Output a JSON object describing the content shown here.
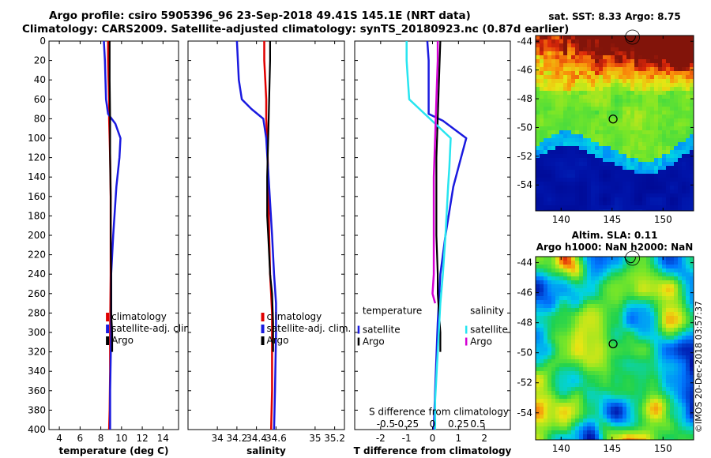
{
  "header": {
    "title_line1": "Argo profile: csiro 5905396_96 23-Sep-2018 49.41S 145.1E (NRT data)",
    "title_line2": "Climatology: CARS2009. Satellite-adjusted climatology: synTS_20180923.nc (0.87d earlier)"
  },
  "stamp": "©IMOS 20-Dec-2018 03:57:37",
  "colors": {
    "red": "#e00000",
    "blue": "#1a1adf",
    "black": "#000000",
    "cyan": "#27e5f0",
    "magenta": "#d400d4"
  },
  "chart_data": [
    {
      "type": "line",
      "id": "temperature",
      "xlabel": "temperature (deg C)",
      "xlim": [
        3,
        15.5
      ],
      "ylim": [
        0,
        400
      ],
      "xticks": [
        4,
        6,
        8,
        10,
        12,
        14
      ],
      "yticks": [
        0,
        20,
        40,
        60,
        80,
        100,
        120,
        140,
        160,
        180,
        200,
        220,
        240,
        260,
        280,
        300,
        320,
        340,
        360,
        380,
        400
      ],
      "legend": [
        "climatology",
        "satellite-adj. clim.",
        "Argo"
      ],
      "series": [
        {
          "name": "climatology",
          "color": "red",
          "x": [
            8.7,
            8.7,
            8.75,
            8.8,
            8.8,
            8.85,
            8.9,
            8.95,
            8.95,
            8.95,
            8.9,
            8.9,
            8.85,
            8.8
          ],
          "y": [
            0,
            20,
            40,
            60,
            80,
            100,
            120,
            160,
            200,
            240,
            300,
            340,
            380,
            400
          ]
        },
        {
          "name": "satellite-adj. clim.",
          "color": "blue",
          "x": [
            8.3,
            8.4,
            8.5,
            8.7,
            9.4,
            9.9,
            9.8,
            9.5,
            9.2,
            9.0,
            9.0,
            8.9,
            8.9
          ],
          "y": [
            0,
            20,
            60,
            75,
            85,
            100,
            120,
            150,
            200,
            240,
            300,
            360,
            400
          ]
        },
        {
          "name": "Argo",
          "color": "black",
          "x": [
            8.85,
            8.85,
            8.9,
            8.9,
            8.95,
            8.95,
            9.0,
            9.0,
            9.1,
            9.1
          ],
          "y": [
            0,
            40,
            80,
            120,
            160,
            200,
            240,
            280,
            300,
            320
          ]
        }
      ]
    },
    {
      "type": "line",
      "id": "salinity",
      "xlabel": "salinity",
      "xlim": [
        33.7,
        35.3
      ],
      "ylim": [
        0,
        400
      ],
      "xticks": [
        "34",
        "34.2",
        "34.4",
        "34.6",
        "35",
        "35.2"
      ],
      "xtick_values": [
        34,
        34.2,
        34.4,
        34.6,
        35,
        35.2
      ],
      "legend": [
        "climatology",
        "satellite-adj. clim.",
        "Argo"
      ],
      "series": [
        {
          "name": "climatology",
          "color": "red",
          "x": [
            34.48,
            34.48,
            34.49,
            34.5,
            34.5,
            34.51,
            34.52,
            34.53,
            34.54,
            34.55,
            34.56,
            34.56,
            34.56,
            34.55
          ],
          "y": [
            0,
            20,
            40,
            60,
            80,
            100,
            140,
            200,
            240,
            260,
            280,
            320,
            360,
            400
          ]
        },
        {
          "name": "satellite-adj. clim.",
          "color": "blue",
          "x": [
            34.2,
            34.21,
            34.22,
            34.25,
            34.35,
            34.47,
            34.5,
            34.53,
            34.56,
            34.58,
            34.6,
            34.6,
            34.59,
            34.58
          ],
          "y": [
            0,
            20,
            40,
            60,
            70,
            80,
            100,
            150,
            200,
            240,
            270,
            300,
            360,
            400
          ]
        },
        {
          "name": "Argo",
          "color": "black",
          "x": [
            34.54,
            34.54,
            34.53,
            34.52,
            34.51,
            34.51,
            34.52,
            34.53,
            34.54,
            34.56,
            34.57,
            34.57
          ],
          "y": [
            0,
            20,
            60,
            100,
            140,
            180,
            200,
            220,
            240,
            260,
            290,
            320
          ]
        }
      ]
    },
    {
      "type": "line",
      "id": "difference",
      "xlabel": "T difference from climatology",
      "xlabel_top": "S difference from climatology",
      "xlim": [
        -3,
        3
      ],
      "ylim": [
        0,
        400
      ],
      "xticks": [
        "-2",
        "-1",
        "0",
        "1",
        "2"
      ],
      "xtick_values": [
        -2,
        -1,
        0,
        1,
        2
      ],
      "top_xticks": [
        "-0.5",
        "-0.25",
        "0",
        "0.25",
        "0.5"
      ],
      "top_xtick_values": [
        -1.8,
        -1.0,
        0.0,
        1.0,
        1.75
      ],
      "legend_temperature": {
        "title": "temperature",
        "items": [
          "satellite",
          "Argo"
        ]
      },
      "legend_salinity": {
        "title": "salinity",
        "items": [
          "satellite",
          "Argo"
        ]
      },
      "series": [
        {
          "name": "T satellite",
          "color": "blue",
          "x": [
            -0.2,
            -0.15,
            -0.15,
            -0.15,
            0.4,
            1.3,
            1.1,
            0.8,
            0.5,
            0.3,
            0.2,
            0.1,
            0.05
          ],
          "y": [
            0,
            20,
            60,
            75,
            82,
            100,
            120,
            150,
            200,
            240,
            290,
            360,
            400
          ]
        },
        {
          "name": "T Argo",
          "color": "black",
          "x": [
            0.3,
            0.25,
            0.2,
            0.15,
            0.15,
            0.15,
            0.2,
            0.2,
            0.3,
            0.3
          ],
          "y": [
            0,
            40,
            80,
            120,
            160,
            200,
            240,
            260,
            300,
            320
          ]
        },
        {
          "name": "S satellite",
          "color": "cyan",
          "x": [
            -1.0,
            -1.0,
            -0.95,
            -0.9,
            -0.1,
            0.7,
            0.65,
            0.6,
            0.5,
            0.4,
            0.3,
            0.2,
            0.1,
            0.1
          ],
          "y": [
            0,
            20,
            40,
            60,
            80,
            100,
            130,
            150,
            200,
            240,
            270,
            320,
            370,
            400
          ]
        },
        {
          "name": "S Argo",
          "color": "magenta",
          "x": [
            0.2,
            0.2,
            0.15,
            0.1,
            0.05,
            0.05,
            0.05,
            0.05,
            0.0,
            0.1
          ],
          "y": [
            0,
            20,
            60,
            100,
            140,
            180,
            220,
            240,
            260,
            270
          ]
        }
      ]
    },
    {
      "type": "heatmap",
      "id": "sst_map",
      "title": "sat. SST: 8.33 Argo: 8.75",
      "xlim": [
        137.5,
        153
      ],
      "ylim": [
        -55.8,
        -43.6
      ],
      "xticks": [
        140,
        145,
        150
      ],
      "yticks": [
        -44,
        -46,
        -48,
        -50,
        -52,
        -54
      ],
      "argo_position": [
        145.1,
        -49.41
      ]
    },
    {
      "type": "heatmap",
      "id": "sla_map",
      "title_line1": "Altim. SLA: 0.11",
      "title_line2": "Argo h1000: NaN h2000: NaN",
      "xlim": [
        137.5,
        153
      ],
      "ylim": [
        -55.8,
        -43.6
      ],
      "xticks": [
        140,
        145,
        150
      ],
      "yticks": [
        -44,
        -46,
        -48,
        -50,
        -52,
        -54
      ],
      "argo_position": [
        145.1,
        -49.41
      ]
    }
  ]
}
